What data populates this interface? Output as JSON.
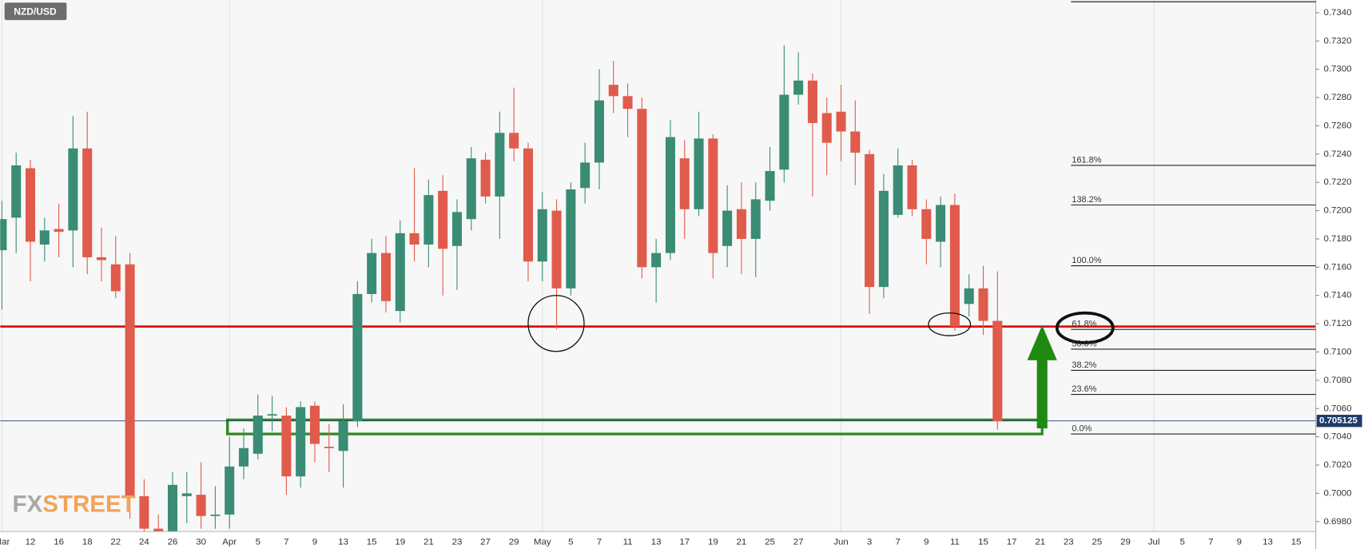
{
  "chart_data": {
    "type": "candlestick",
    "title": "NZD/USD",
    "logo": [
      "FX",
      "STREET"
    ],
    "categories": [
      "Mar",
      null,
      "12",
      null,
      "16",
      null,
      "18",
      null,
      "22",
      null,
      "24",
      null,
      "26",
      null,
      "30",
      null,
      "Apr",
      null,
      "5",
      null,
      "7",
      null,
      "9",
      null,
      "13",
      null,
      "15",
      null,
      "19",
      null,
      "21",
      null,
      "23",
      null,
      "27",
      null,
      "29",
      null,
      "May",
      null,
      "5",
      null,
      "7",
      null,
      "11",
      null,
      "13",
      null,
      "17",
      null,
      "19",
      null,
      "21",
      null,
      "25",
      null,
      "27",
      null,
      null,
      "Jun",
      null,
      "3",
      null,
      "7",
      null,
      "9",
      null,
      "11",
      null,
      "15",
      null,
      "17",
      null,
      "21",
      null,
      "23",
      null,
      "25",
      null,
      "29",
      null,
      "Jul",
      null,
      "5",
      null,
      "7",
      null,
      "9",
      null,
      "13",
      null,
      "15"
    ],
    "open": [
      0.7172,
      0.7195,
      0.723,
      0.7176,
      0.7187,
      0.7186,
      0.7244,
      0.7167,
      0.7162,
      0.7162,
      0.6998,
      0.6975,
      0.6972,
      0.6998,
      0.6999,
      0.6984,
      0.6985,
      0.7019,
      0.7028,
      0.7055,
      0.7055,
      0.7012,
      0.7062,
      0.7033,
      0.703,
      0.7051,
      0.7141,
      0.717,
      0.7129,
      0.7184,
      0.7176,
      0.7214,
      0.7175,
      0.7194,
      0.7236,
      0.721,
      0.7255,
      0.7244,
      0.7164,
      0.72,
      0.7145,
      0.7216,
      0.7234,
      0.7289,
      0.7281,
      0.7272,
      0.716,
      0.717,
      0.7237,
      0.7201,
      0.7251,
      0.7175,
      0.7201,
      0.718,
      0.7207,
      0.7229,
      0.7282,
      0.7292,
      0.7269,
      0.727,
      0.7256,
      0.724,
      0.7146,
      0.7197,
      0.7232,
      0.7201,
      0.7178,
      0.7204,
      0.7134,
      0.7145,
      0.7122,
      null,
      null,
      null,
      null,
      null,
      null,
      null,
      null,
      null,
      null,
      null,
      null,
      null,
      null,
      null,
      null,
      null,
      null,
      null,
      null,
      null
    ],
    "high": [
      0.7207,
      0.7241,
      0.7236,
      0.7195,
      0.7205,
      0.7267,
      0.727,
      0.7188,
      0.7182,
      0.717,
      0.701,
      0.6985,
      0.7015,
      0.7015,
      0.7022,
      0.7005,
      0.704,
      0.7046,
      0.707,
      0.7069,
      0.7061,
      0.7065,
      0.7065,
      0.7049,
      0.7063,
      0.715,
      0.718,
      0.7182,
      0.7193,
      0.723,
      0.7222,
      0.7225,
      0.7208,
      0.7245,
      0.7241,
      0.727,
      0.7287,
      0.7248,
      0.7213,
      0.7208,
      0.722,
      0.7248,
      0.73,
      0.7306,
      0.729,
      0.728,
      0.718,
      0.7264,
      0.725,
      0.727,
      0.7254,
      0.7218,
      0.722,
      0.722,
      0.7245,
      0.7317,
      0.7312,
      0.7297,
      0.728,
      0.7289,
      0.7278,
      0.7243,
      0.7226,
      0.7244,
      0.7236,
      0.7208,
      0.721,
      0.7212,
      0.7155,
      0.7161,
      0.7157,
      null,
      null,
      null,
      null,
      null,
      null,
      null,
      null,
      null,
      null,
      null,
      null,
      null,
      null,
      null,
      null,
      null,
      null,
      null,
      null,
      null
    ],
    "low": [
      0.713,
      0.717,
      0.715,
      0.7164,
      0.7167,
      0.716,
      0.7155,
      0.715,
      0.7138,
      0.6982,
      0.6965,
      0.696,
      0.6965,
      0.6979,
      0.6975,
      0.6975,
      0.6975,
      0.701,
      0.7024,
      0.7044,
      0.6999,
      0.7004,
      0.7022,
      0.7015,
      0.7004,
      0.7047,
      0.7135,
      0.7128,
      0.7121,
      0.7164,
      0.716,
      0.714,
      0.7144,
      0.7186,
      0.7205,
      0.718,
      0.7235,
      0.715,
      0.715,
      0.7116,
      0.714,
      0.7205,
      0.7215,
      0.7269,
      0.7252,
      0.7152,
      0.7135,
      0.7165,
      0.718,
      0.7196,
      0.7152,
      0.716,
      0.7155,
      0.7153,
      0.72,
      0.722,
      0.7275,
      0.721,
      0.7225,
      0.7235,
      0.7218,
      0.7127,
      0.7138,
      0.7195,
      0.7196,
      0.7162,
      0.716,
      0.7115,
      0.7125,
      0.7112,
      0.7045,
      null,
      null,
      null,
      null,
      null,
      null,
      null,
      null,
      null,
      null,
      null,
      null,
      null,
      null,
      null,
      null,
      null,
      null,
      null,
      null,
      null
    ],
    "close": [
      0.7194,
      0.7232,
      0.7178,
      0.7186,
      0.7185,
      0.7244,
      0.7167,
      0.7165,
      0.7143,
      0.6998,
      0.6975,
      0.697,
      0.7006,
      0.7,
      0.6984,
      0.6985,
      0.7019,
      0.7032,
      0.7055,
      0.7056,
      0.7012,
      0.7061,
      0.7035,
      0.7032,
      0.7051,
      0.7141,
      0.717,
      0.7136,
      0.7184,
      0.7176,
      0.7211,
      0.7173,
      0.7199,
      0.7237,
      0.721,
      0.7255,
      0.7244,
      0.7164,
      0.7201,
      0.7145,
      0.7215,
      0.7234,
      0.7278,
      0.7281,
      0.7272,
      0.716,
      0.717,
      0.7252,
      0.7201,
      0.7251,
      0.717,
      0.72,
      0.718,
      0.7208,
      0.7228,
      0.7282,
      0.7292,
      0.7262,
      0.7248,
      0.7256,
      0.7241,
      0.7146,
      0.7214,
      0.7232,
      0.7201,
      0.718,
      0.7204,
      0.7118,
      0.7145,
      0.7122,
      0.7051,
      null,
      null,
      null,
      null,
      null,
      null,
      null,
      null,
      null,
      null,
      null,
      null,
      null,
      null,
      null,
      null,
      null,
      null,
      null,
      null,
      null
    ],
    "up_color": "#3a8c74",
    "down_color": "#e05b4b",
    "ylim": [
      0.6973,
      0.7349
    ],
    "yticks": [
      {
        "value": 0.698,
        "label": "0.6980"
      },
      {
        "value": 0.7,
        "label": "0.7000"
      },
      {
        "value": 0.702,
        "label": "0.7020"
      },
      {
        "value": 0.704,
        "label": "0.7040"
      },
      {
        "value": 0.706,
        "label": "0.7060"
      },
      {
        "value": 0.708,
        "label": "0.7080"
      },
      {
        "value": 0.71,
        "label": "0.7100"
      },
      {
        "value": 0.712,
        "label": "0.7120"
      },
      {
        "value": 0.714,
        "label": "0.7140"
      },
      {
        "value": 0.716,
        "label": "0.7160"
      },
      {
        "value": 0.718,
        "label": "0.7180"
      },
      {
        "value": 0.72,
        "label": "0.7200"
      },
      {
        "value": 0.722,
        "label": "0.7220"
      },
      {
        "value": 0.724,
        "label": "0.7240"
      },
      {
        "value": 0.726,
        "label": "0.7260"
      },
      {
        "value": 0.728,
        "label": "0.7280"
      },
      {
        "value": 0.73,
        "label": "0.7300"
      },
      {
        "value": 0.732,
        "label": "0.7320"
      },
      {
        "value": 0.734,
        "label": "0.7340"
      }
    ],
    "last_price": 0.705125,
    "last_price_color": "#1f3b6c",
    "support_level": 0.7118,
    "support_color": "#e01010",
    "zone": [
      0.7042,
      0.7052
    ],
    "zone_color": "#2e8b1e",
    "fibonacci": [
      {
        "label": "161.8%",
        "price": 0.7232
      },
      {
        "label": "138.2%",
        "price": 0.7204
      },
      {
        "label": "100.0%",
        "price": 0.7161
      },
      {
        "label": "61.8%",
        "price": 0.7116
      },
      {
        "label": "50.0%",
        "price": 0.7102
      },
      {
        "label": "38.2%",
        "price": 0.7087
      },
      {
        "label": "23.6%",
        "price": 0.707
      },
      {
        "label": "0.0%",
        "price": 0.7042
      }
    ]
  }
}
